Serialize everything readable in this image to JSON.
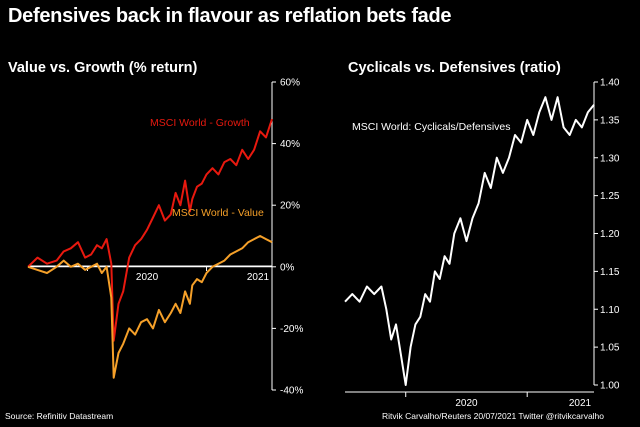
{
  "title": "Defensives back in flavour as reflation bets fade",
  "footer": {
    "source": "Source: Refinitiv Datastream",
    "credit": "Ritvik Carvalho/Reuters 20/07/2021 Twitter @ritvikcarvalho"
  },
  "colors": {
    "background": "#000000",
    "growth": "#e8190f",
    "value": "#f5a029",
    "ratio": "#ffffff",
    "axis": "#ffffff"
  },
  "chart_data": [
    {
      "type": "line",
      "title": "Value vs. Growth (% return)",
      "xlabel": "",
      "ylabel": "",
      "ylim": [
        -40,
        60
      ],
      "yticks": [
        -40,
        -20,
        0,
        20,
        40,
        60
      ],
      "ytick_labels": [
        "-40%",
        "-20%",
        "0%",
        "20%",
        "40%",
        "60%"
      ],
      "xlim": [
        2019.5,
        2021.55
      ],
      "xticks": [
        2020,
        2021
      ],
      "xtick_labels": [
        "2020",
        "2021"
      ],
      "series": [
        {
          "name": "MSCI World - Growth",
          "x": [
            2019.5,
            2019.58,
            2019.66,
            2019.74,
            2019.8,
            2019.86,
            2019.92,
            2019.98,
            2020.03,
            2020.08,
            2020.12,
            2020.16,
            2020.2,
            2020.22,
            2020.26,
            2020.3,
            2020.35,
            2020.4,
            2020.45,
            2020.5,
            2020.55,
            2020.6,
            2020.65,
            2020.7,
            2020.74,
            2020.78,
            2020.82,
            2020.86,
            2020.88,
            2020.92,
            2020.96,
            2021.0,
            2021.05,
            2021.1,
            2021.15,
            2021.2,
            2021.25,
            2021.3,
            2021.35,
            2021.4,
            2021.45,
            2021.5,
            2021.55
          ],
          "values": [
            0,
            3,
            1,
            2,
            5,
            6,
            8,
            3,
            4,
            7,
            6,
            9,
            1,
            -24,
            -12,
            -8,
            3,
            7,
            9,
            12,
            16,
            20,
            15,
            17,
            24,
            20,
            28,
            18,
            22,
            26,
            27,
            30,
            32,
            30,
            34,
            35,
            33,
            38,
            35,
            38,
            44,
            42,
            48
          ]
        },
        {
          "name": "MSCI World - Value",
          "x": [
            2019.5,
            2019.58,
            2019.66,
            2019.74,
            2019.8,
            2019.86,
            2019.92,
            2019.98,
            2020.03,
            2020.08,
            2020.12,
            2020.16,
            2020.2,
            2020.22,
            2020.26,
            2020.3,
            2020.35,
            2020.4,
            2020.45,
            2020.5,
            2020.55,
            2020.6,
            2020.65,
            2020.7,
            2020.74,
            2020.78,
            2020.82,
            2020.86,
            2020.88,
            2020.92,
            2020.96,
            2021.0,
            2021.05,
            2021.1,
            2021.15,
            2021.2,
            2021.25,
            2021.3,
            2021.35,
            2021.4,
            2021.45,
            2021.5,
            2021.55
          ],
          "values": [
            0,
            -1,
            -2,
            0,
            2,
            0,
            1,
            -1,
            0,
            1,
            -2,
            0,
            -10,
            -36,
            -28,
            -25,
            -20,
            -22,
            -18,
            -17,
            -20,
            -14,
            -18,
            -15,
            -12,
            -15,
            -8,
            -12,
            -6,
            -4,
            -5,
            -2,
            0,
            1,
            2,
            4,
            5,
            6,
            8,
            9,
            10,
            9,
            8
          ]
        }
      ]
    },
    {
      "type": "line",
      "title": "Cyclicals vs. Defensives (ratio)",
      "xlabel": "",
      "ylabel": "",
      "ylim": [
        1.0,
        1.4
      ],
      "yticks": [
        1.0,
        1.05,
        1.1,
        1.15,
        1.2,
        1.25,
        1.3,
        1.35,
        1.4
      ],
      "ytick_labels": [
        "1.00",
        "1.05",
        "1.10",
        "1.15",
        "1.20",
        "1.25",
        "1.30",
        "1.35",
        "1.40"
      ],
      "xlim": [
        2019.5,
        2021.55
      ],
      "xticks": [
        2020,
        2021
      ],
      "xtick_labels": [
        "2020",
        "2021"
      ],
      "series": [
        {
          "name": "MSCI World: Cyclicals/Defensives",
          "x": [
            2019.5,
            2019.56,
            2019.62,
            2019.68,
            2019.74,
            2019.8,
            2019.84,
            2019.88,
            2019.92,
            2019.96,
            2020.0,
            2020.04,
            2020.08,
            2020.12,
            2020.16,
            2020.2,
            2020.24,
            2020.28,
            2020.32,
            2020.36,
            2020.4,
            2020.45,
            2020.5,
            2020.55,
            2020.6,
            2020.65,
            2020.7,
            2020.75,
            2020.8,
            2020.85,
            2020.9,
            2020.95,
            2021.0,
            2021.05,
            2021.1,
            2021.15,
            2021.2,
            2021.25,
            2021.3,
            2021.35,
            2021.4,
            2021.45,
            2021.5,
            2021.55
          ],
          "values": [
            1.11,
            1.12,
            1.11,
            1.13,
            1.12,
            1.13,
            1.1,
            1.06,
            1.08,
            1.04,
            1.0,
            1.05,
            1.08,
            1.09,
            1.12,
            1.11,
            1.15,
            1.14,
            1.17,
            1.16,
            1.2,
            1.22,
            1.19,
            1.22,
            1.24,
            1.28,
            1.26,
            1.3,
            1.28,
            1.3,
            1.33,
            1.32,
            1.35,
            1.33,
            1.36,
            1.38,
            1.35,
            1.38,
            1.34,
            1.33,
            1.35,
            1.34,
            1.36,
            1.37
          ]
        }
      ]
    }
  ]
}
